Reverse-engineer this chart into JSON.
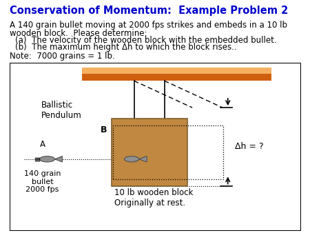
{
  "title": "Conservation of Momentum:  Example Problem 2",
  "title_color": "#0000CC",
  "body_lines": [
    [
      "A 140 grain bullet moving at 2000 fps strikes and embeds in a 10 lb",
      0.04
    ],
    [
      "wooden block.  Please determine:",
      0.04
    ],
    [
      "    (a)  The velocity of the wooden block with the embedded bullet.",
      0.04
    ],
    [
      "    (b)  The maximum height Δh to which the block rises..",
      0.04
    ],
    [
      "Note:  7000 grains = 1 lb.",
      0.04
    ]
  ],
  "fig_bgcolor": "#ffffff",
  "ceiling_color_bottom": "#D06010",
  "ceiling_color_top": "#F5B060",
  "block_color": "#C08840",
  "block_edge": "#806030",
  "label_ballistic": "Ballistic\nPendulum",
  "label_bullet_outside": "140 grain\nbullet\n2000 fps",
  "label_block": "10 lb wooden block\nOriginally at rest.",
  "label_dh": "Δh = ?",
  "label_B": "B",
  "label_A": "A"
}
